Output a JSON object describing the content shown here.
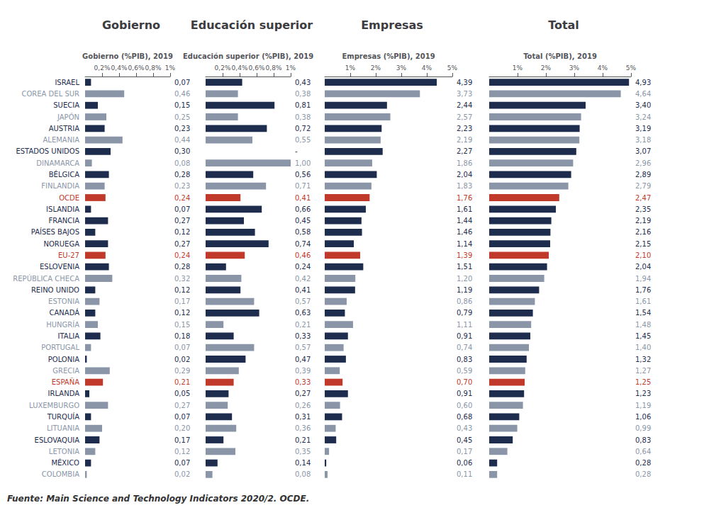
{
  "chart_data": [
    {
      "type": "bar",
      "orientation": "horizontal",
      "title": "Gobierno",
      "xlabel": "Gobierno (%PIB), 2019",
      "categories": [
        "ISRAEL",
        "COREA DEL SUR",
        "SUECIA",
        "JAPÓN",
        "AUSTRIA",
        "ALEMANIA",
        "ESTADOS UNIDOS",
        "DINAMARCA",
        "BÉLGICA",
        "FINLANDIA",
        "OCDE",
        "ISLANDIA",
        "FRANCIA",
        "PAÍSES BAJOS",
        "NORUEGA",
        "EU-27",
        "ESLOVENIA",
        "REPÚBLICA CHECA",
        "REINO UNIDO",
        "ESTONIA",
        "CANADÁ",
        "HUNGRÍA",
        "ITALIA",
        "PORTUGAL",
        "POLONIA",
        "GRECIA",
        "ESPAÑA",
        "IRLANDA",
        "LUXEMBURGO",
        "TURQUÍA",
        "LITUANIA",
        "ESLOVAQUIA",
        "LETONIA",
        "MÉXICO",
        "COLOMBIA"
      ],
      "values": [
        0.07,
        0.46,
        0.15,
        0.25,
        0.23,
        0.44,
        0.3,
        0.08,
        0.28,
        0.23,
        0.24,
        0.07,
        0.27,
        0.12,
        0.27,
        0.24,
        0.28,
        0.32,
        0.12,
        0.17,
        0.12,
        0.15,
        0.18,
        0.07,
        0.02,
        0.29,
        0.21,
        0.05,
        0.27,
        0.07,
        0.2,
        0.17,
        0.12,
        0.07,
        0.02
      ],
      "value_labels": [
        "0,07",
        "0,46",
        "0,15",
        "0,25",
        "0,23",
        "0,44",
        "0,30",
        "0,08",
        "0,28",
        "0,23",
        "0,24",
        "0,07",
        "0,27",
        "0,12",
        "0,27",
        "0,24",
        "0,28",
        "0,32",
        "0,12",
        "0,17",
        "0,12",
        "0,15",
        "0,18",
        "0,07",
        "0,02",
        "0,29",
        "0,21",
        "0,05",
        "0,27",
        "0,07",
        "0,20",
        "0,17",
        "0,12",
        "0,07",
        "0,02"
      ],
      "colors": [
        "#1e2d4e",
        "#8a96a8",
        "#1e2d4e",
        "#8a96a8",
        "#1e2d4e",
        "#8a96a8",
        "#1e2d4e",
        "#8a96a8",
        "#1e2d4e",
        "#8a96a8",
        "#c0392b",
        "#1e2d4e",
        "#1e2d4e",
        "#1e2d4e",
        "#1e2d4e",
        "#c0392b",
        "#1e2d4e",
        "#8a96a8",
        "#1e2d4e",
        "#8a96a8",
        "#1e2d4e",
        "#8a96a8",
        "#1e2d4e",
        "#8a96a8",
        "#1e2d4e",
        "#8a96a8",
        "#c0392b",
        "#1e2d4e",
        "#8a96a8",
        "#1e2d4e",
        "#8a96a8",
        "#1e2d4e",
        "#8a96a8",
        "#1e2d4e",
        "#8a96a8"
      ],
      "xlim": [
        0,
        1.0
      ],
      "xticks": [
        {
          "value": 0.2,
          "label": "0,2%"
        },
        {
          "value": 0.4,
          "label": "0,4%"
        },
        {
          "value": 0.6,
          "label": "0,6%"
        },
        {
          "value": 0.8,
          "label": "0,8%"
        },
        {
          "value": 1.0,
          "label": "1%"
        }
      ],
      "grid": false,
      "data_labels": true,
      "annotations": [
        "Fuente: Main Science and Technology Indicators 2020/2. OCDE."
      ]
    },
    {
      "type": "bar",
      "orientation": "horizontal",
      "title": "Educación superior",
      "xlabel": "Educación superior (%PIB), 2019",
      "categories": [
        "ISRAEL",
        "COREA DEL SUR",
        "SUECIA",
        "JAPÓN",
        "AUSTRIA",
        "ALEMANIA",
        "ESTADOS UNIDOS",
        "DINAMARCA",
        "BÉLGICA",
        "FINLANDIA",
        "OCDE",
        "ISLANDIA",
        "FRANCIA",
        "PAÍSES BAJOS",
        "NORUEGA",
        "EU-27",
        "ESLOVENIA",
        "REPÚBLICA CHECA",
        "REINO UNIDO",
        "ESTONIA",
        "CANADÁ",
        "HUNGRÍA",
        "ITALIA",
        "PORTUGAL",
        "POLONIA",
        "GRECIA",
        "ESPAÑA",
        "IRLANDA",
        "LUXEMBURGO",
        "TURQUÍA",
        "LITUANIA",
        "ESLOVAQUIA",
        "LETONIA",
        "MÉXICO",
        "COLOMBIA"
      ],
      "values": [
        0.43,
        0.38,
        0.81,
        0.38,
        0.72,
        0.55,
        null,
        1.0,
        0.56,
        0.71,
        0.41,
        0.66,
        0.45,
        0.58,
        0.74,
        0.46,
        0.24,
        0.42,
        0.41,
        0.57,
        0.63,
        0.21,
        0.33,
        0.57,
        0.47,
        0.39,
        0.33,
        0.27,
        0.26,
        0.31,
        0.36,
        0.21,
        0.35,
        0.14,
        0.08
      ],
      "value_labels": [
        "0,43",
        "0,38",
        "0,81",
        "0,38",
        "0,72",
        "0,55",
        "-",
        "1,00",
        "0,56",
        "0,71",
        "0,41",
        "0,66",
        "0,45",
        "0,58",
        "0,74",
        "0,46",
        "0,24",
        "0,42",
        "0,41",
        "0,57",
        "0,63",
        "0,21",
        "0,33",
        "0,57",
        "0,47",
        "0,39",
        "0,33",
        "0,27",
        "0,26",
        "0,31",
        "0,36",
        "0,21",
        "0,35",
        "0,14",
        "0,08"
      ],
      "colors": [
        "#1e2d4e",
        "#8a96a8",
        "#1e2d4e",
        "#8a96a8",
        "#1e2d4e",
        "#8a96a8",
        "#1e2d4e",
        "#8a96a8",
        "#1e2d4e",
        "#8a96a8",
        "#c0392b",
        "#1e2d4e",
        "#1e2d4e",
        "#1e2d4e",
        "#1e2d4e",
        "#c0392b",
        "#1e2d4e",
        "#8a96a8",
        "#1e2d4e",
        "#8a96a8",
        "#1e2d4e",
        "#8a96a8",
        "#1e2d4e",
        "#8a96a8",
        "#1e2d4e",
        "#8a96a8",
        "#c0392b",
        "#1e2d4e",
        "#8a96a8",
        "#1e2d4e",
        "#8a96a8",
        "#1e2d4e",
        "#8a96a8",
        "#1e2d4e",
        "#8a96a8"
      ],
      "xlim": [
        0,
        1.0
      ],
      "xticks": [
        {
          "value": 0.2,
          "label": "0,2%"
        },
        {
          "value": 0.4,
          "label": "0,4%"
        },
        {
          "value": 0.6,
          "label": "0,6%"
        },
        {
          "value": 0.8,
          "label": "0,8%"
        },
        {
          "value": 1.0,
          "label": "1%"
        }
      ],
      "grid": false,
      "data_labels": true,
      "tick_labels": "x"
    },
    {
      "type": "bar",
      "orientation": "horizontal",
      "title": "Empresas",
      "xlabel": "Empresas (%PIB), 2019",
      "categories": [
        "ISRAEL",
        "COREA DEL SUR",
        "SUECIA",
        "JAPÓN",
        "AUSTRIA",
        "ALEMANIA",
        "ESTADOS UNIDOS",
        "DINAMARCA",
        "BÉLGICA",
        "FINLANDIA",
        "OCDE",
        "ISLANDIA",
        "FRANCIA",
        "PAÍSES BAJOS",
        "NORUEGA",
        "EU-27",
        "ESLOVENIA",
        "REPÚBLICA CHECA",
        "REINO UNIDO",
        "ESTONIA",
        "CANADÁ",
        "HUNGRÍA",
        "ITALIA",
        "PORTUGAL",
        "POLONIA",
        "GRECIA",
        "ESPAÑA",
        "IRLANDA",
        "LUXEMBURGO",
        "TURQUÍA",
        "LITUANIA",
        "ESLOVAQUIA",
        "LETONIA",
        "MÉXICO",
        "COLOMBIA"
      ],
      "values": [
        4.39,
        3.73,
        2.44,
        2.57,
        2.23,
        2.19,
        2.27,
        1.86,
        2.04,
        1.83,
        1.76,
        1.61,
        1.44,
        1.46,
        1.14,
        1.39,
        1.51,
        1.2,
        1.19,
        0.86,
        0.79,
        1.11,
        0.91,
        0.74,
        0.83,
        0.59,
        0.7,
        0.91,
        0.6,
        0.68,
        0.43,
        0.45,
        0.17,
        0.06,
        0.11
      ],
      "value_labels": [
        "4,39",
        "3,73",
        "2,44",
        "2,57",
        "2,23",
        "2,19",
        "2,27",
        "1,86",
        "2,04",
        "1,83",
        "1,76",
        "1,61",
        "1,44",
        "1,46",
        "1,14",
        "1,39",
        "1,51",
        "1,20",
        "1,19",
        "0,86",
        "0,79",
        "1,11",
        "0,91",
        "0,74",
        "0,83",
        "0,59",
        "0,70",
        "0,91",
        "0,60",
        "0,68",
        "0,43",
        "0,45",
        "0,17",
        "0,06",
        "0,11"
      ],
      "colors": [
        "#1e2d4e",
        "#8a96a8",
        "#1e2d4e",
        "#8a96a8",
        "#1e2d4e",
        "#8a96a8",
        "#1e2d4e",
        "#8a96a8",
        "#1e2d4e",
        "#8a96a8",
        "#c0392b",
        "#1e2d4e",
        "#1e2d4e",
        "#1e2d4e",
        "#1e2d4e",
        "#c0392b",
        "#1e2d4e",
        "#8a96a8",
        "#1e2d4e",
        "#8a96a8",
        "#1e2d4e",
        "#8a96a8",
        "#1e2d4e",
        "#8a96a8",
        "#1e2d4e",
        "#8a96a8",
        "#c0392b",
        "#1e2d4e",
        "#8a96a8",
        "#1e2d4e",
        "#8a96a8",
        "#1e2d4e",
        "#8a96a8",
        "#1e2d4e",
        "#8a96a8"
      ],
      "xlim": [
        0,
        5.0
      ],
      "xticks": [
        {
          "value": 1,
          "label": "1%"
        },
        {
          "value": 2,
          "label": "2%"
        },
        {
          "value": 3,
          "label": "3%"
        },
        {
          "value": 4,
          "label": "4%"
        },
        {
          "value": 5,
          "label": "5%"
        }
      ],
      "grid": false,
      "data_labels": true,
      "tick_labels": "x"
    },
    {
      "type": "bar",
      "orientation": "horizontal",
      "title": "Total",
      "xlabel": "Total (%PIB), 2019",
      "categories": [
        "ISRAEL",
        "COREA DEL SUR",
        "SUECIA",
        "JAPÓN",
        "AUSTRIA",
        "ALEMANIA",
        "ESTADOS UNIDOS",
        "DINAMARCA",
        "BÉLGICA",
        "FINLANDIA",
        "OCDE",
        "ISLANDIA",
        "FRANCIA",
        "PAÍSES BAJOS",
        "NORUEGA",
        "EU-27",
        "ESLOVENIA",
        "REPÚBLICA CHECA",
        "REINO UNIDO",
        "ESTONIA",
        "CANADÁ",
        "HUNGRÍA",
        "ITALIA",
        "PORTUGAL",
        "POLONIA",
        "GRECIA",
        "ESPAÑA",
        "IRLANDA",
        "LUXEMBURGO",
        "TURQUÍA",
        "LITUANIA",
        "ESLOVAQUIA",
        "LETONIA",
        "MÉXICO",
        "COLOMBIA"
      ],
      "values": [
        4.93,
        4.64,
        3.4,
        3.24,
        3.19,
        3.18,
        3.07,
        2.96,
        2.89,
        2.79,
        2.47,
        2.35,
        2.19,
        2.16,
        2.15,
        2.1,
        2.04,
        1.94,
        1.76,
        1.61,
        1.54,
        1.48,
        1.45,
        1.4,
        1.32,
        1.27,
        1.25,
        1.23,
        1.19,
        1.06,
        0.99,
        0.83,
        0.64,
        0.28,
        0.28
      ],
      "value_labels": [
        "4,93",
        "4,64",
        "3,40",
        "3,24",
        "3,19",
        "3,18",
        "3,07",
        "2,96",
        "2,89",
        "2,79",
        "2,47",
        "2,35",
        "2,19",
        "2,16",
        "2,15",
        "2,10",
        "2,04",
        "1,94",
        "1,76",
        "1,61",
        "1,54",
        "1,48",
        "1,45",
        "1,40",
        "1,32",
        "1,27",
        "1,25",
        "1,23",
        "1,19",
        "1,06",
        "0,99",
        "0,83",
        "0,64",
        "0,28",
        "0,28"
      ],
      "colors": [
        "#1e2d4e",
        "#8a96a8",
        "#1e2d4e",
        "#8a96a8",
        "#1e2d4e",
        "#8a96a8",
        "#1e2d4e",
        "#8a96a8",
        "#1e2d4e",
        "#8a96a8",
        "#c0392b",
        "#1e2d4e",
        "#1e2d4e",
        "#1e2d4e",
        "#1e2d4e",
        "#c0392b",
        "#1e2d4e",
        "#8a96a8",
        "#1e2d4e",
        "#8a96a8",
        "#1e2d4e",
        "#8a96a8",
        "#1e2d4e",
        "#8a96a8",
        "#1e2d4e",
        "#8a96a8",
        "#c0392b",
        "#1e2d4e",
        "#8a96a8",
        "#1e2d4e",
        "#8a96a8",
        "#1e2d4e",
        "#8a96a8",
        "#1e2d4e",
        "#8a96a8"
      ],
      "xlim": [
        0,
        5.0
      ],
      "xticks": [
        {
          "value": 1,
          "label": "1%"
        },
        {
          "value": 2,
          "label": "2%"
        },
        {
          "value": 3,
          "label": "3%"
        },
        {
          "value": 4,
          "label": "4%"
        },
        {
          "value": 5,
          "label": "5%"
        }
      ],
      "grid": false,
      "data_labels": true,
      "tick_labels": "x"
    }
  ]
}
